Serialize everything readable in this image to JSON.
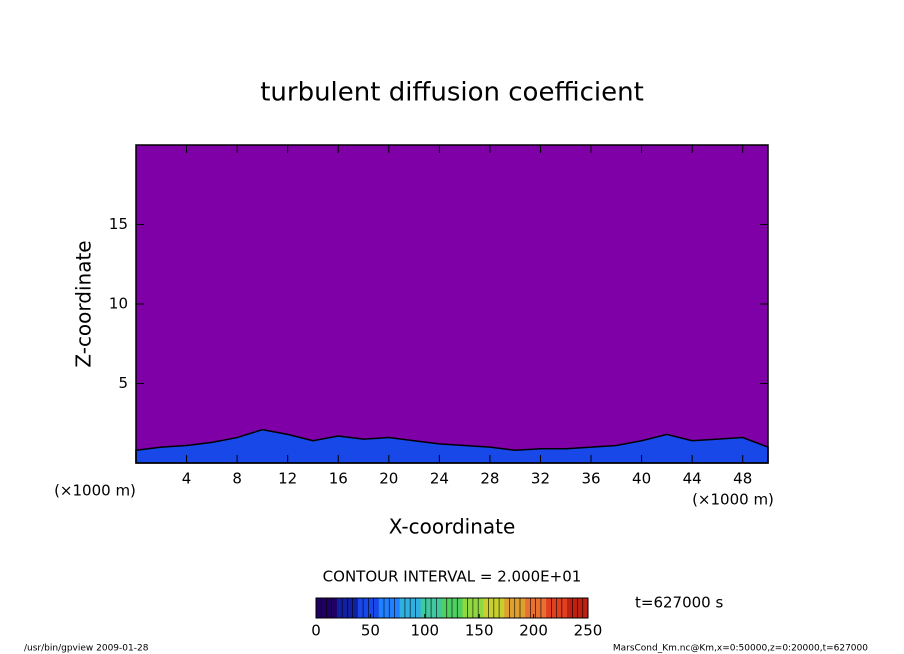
{
  "chart_data": {
    "type": "contour",
    "title": "turbulent diffusion coefficient",
    "xlabel": "X-coordinate",
    "ylabel": "Z-coordinate",
    "xunit": "(×1000 m)",
    "yunit": "(×1000 m)",
    "xlim": [
      0,
      50
    ],
    "ylim": [
      0,
      20
    ],
    "xticks": [
      4,
      8,
      12,
      16,
      20,
      24,
      28,
      32,
      36,
      40,
      44,
      48
    ],
    "yticks": [
      5,
      10,
      15
    ],
    "background_color": "#8000a8",
    "x": [
      0,
      2,
      4,
      6,
      8,
      10,
      12,
      14,
      16,
      18,
      20,
      22,
      24,
      26,
      28,
      30,
      32,
      34,
      36,
      38,
      40,
      42,
      44,
      46,
      48,
      50
    ],
    "series": [
      {
        "color": "#1848e8",
        "values": [
          0.8,
          1.0,
          1.1,
          1.3,
          1.6,
          2.1,
          1.8,
          1.4,
          1.7,
          1.5,
          1.6,
          1.4,
          1.2,
          1.1,
          1.0,
          0.8,
          0.9,
          0.9,
          1.0,
          1.1,
          1.4,
          1.8,
          1.4,
          1.5,
          1.6,
          1.0
        ]
      }
    ],
    "contour_interval_label": "CONTOUR INTERVAL = 2.000E+01",
    "colorbar": {
      "lim": [
        0,
        250
      ],
      "ticks": [
        0,
        50,
        100,
        150,
        200,
        250
      ],
      "colors": [
        "#200060",
        "#1020a0",
        "#1848e8",
        "#2080ff",
        "#30b0e0",
        "#40c8a0",
        "#50d060",
        "#90d840",
        "#c8d030",
        "#e0a030",
        "#e87030",
        "#e04020",
        "#c02010"
      ]
    },
    "time_label": "t=627000 s",
    "footer_left": "/usr/bin/gpview  2009-01-28",
    "footer_right": "MarsCond_Km.nc@Km,x=0:50000,z=0:20000,t=627000"
  }
}
